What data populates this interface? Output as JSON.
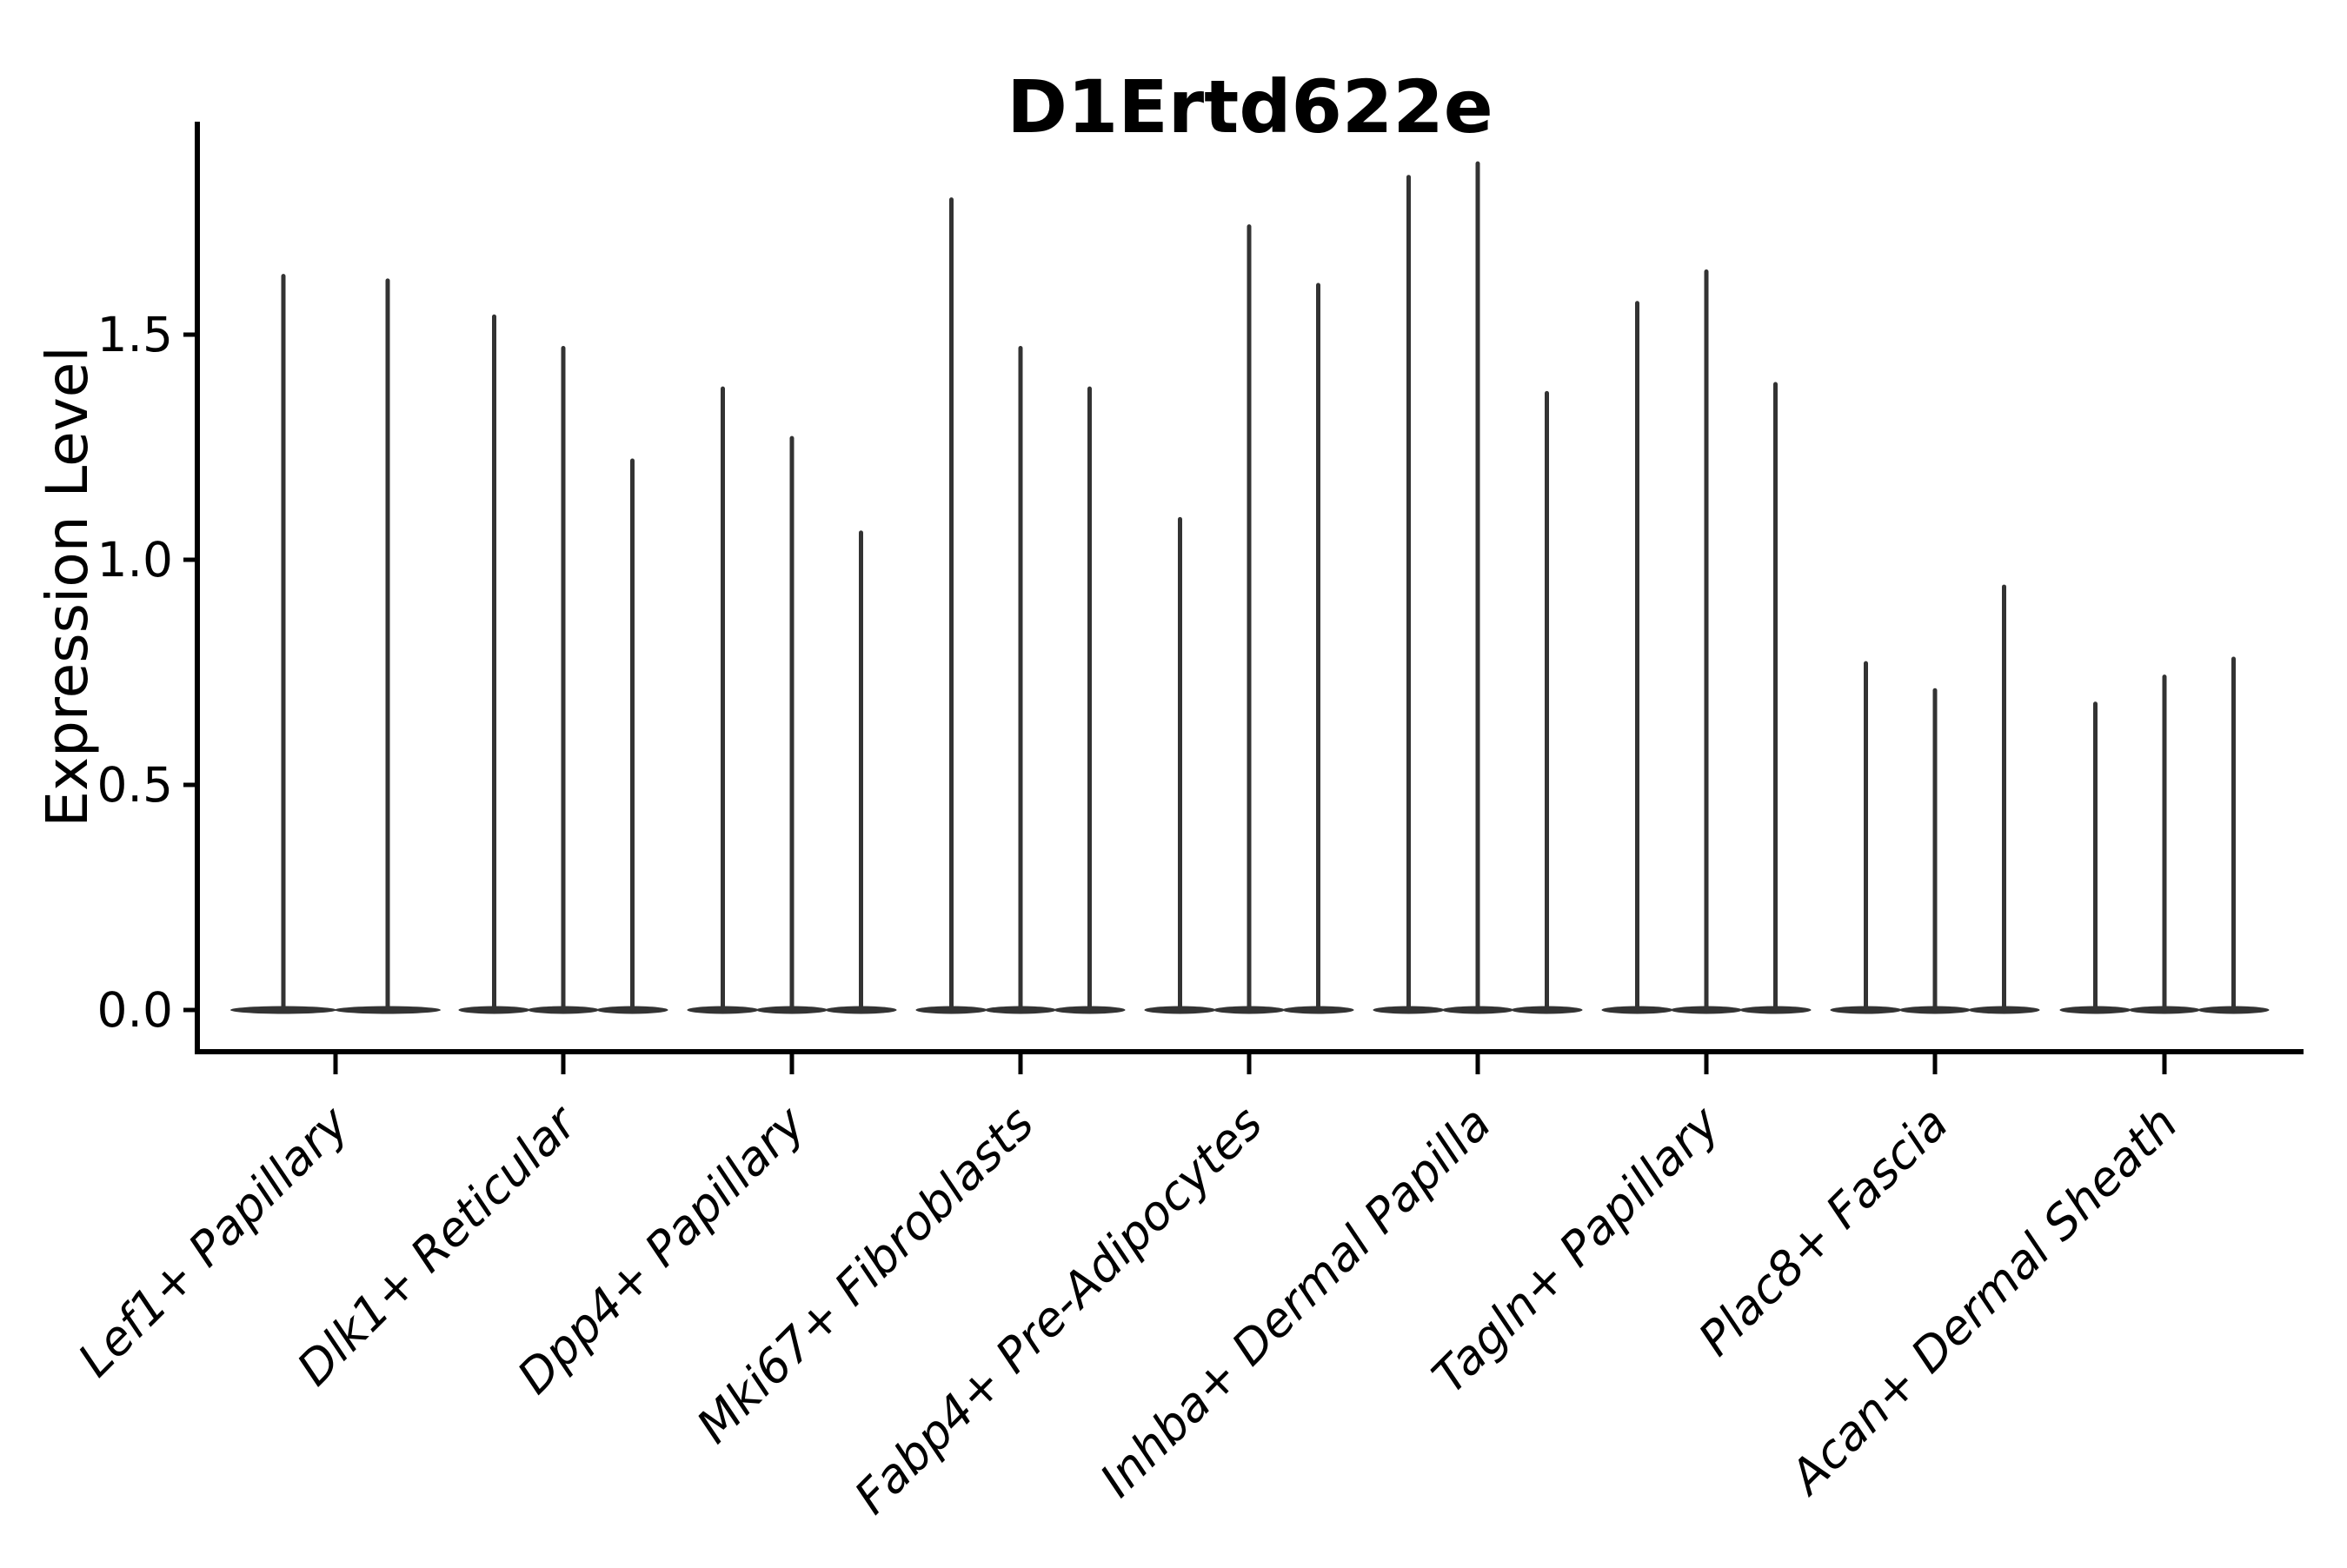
{
  "page": {
    "background": "#ffffff"
  },
  "colors": {
    "violin": "#333333",
    "axis": "#000000",
    "text": "#000000"
  },
  "chart_data": {
    "type": "violin",
    "title": "D1Ertd622e",
    "xlabel": "",
    "ylabel": "Expression Level",
    "ytick_labels": [
      "0.0",
      "0.5",
      "1.0",
      "1.5"
    ],
    "ytick_values": [
      0.0,
      0.5,
      1.0,
      1.5
    ],
    "ylim": [
      -0.09,
      1.97
    ],
    "grid": false,
    "legend": false,
    "x_tick_rotation_deg": 45,
    "categories": [
      "Lef1+ Papillary",
      "Dlk1+ Reticular",
      "Dpp4+ Papillary",
      "Mki67+ Fibroblasts",
      "Fabp4+ Pre-Adipocytes",
      "Inhba+ Dermal Papilla",
      "Tagln+ Papillary",
      "Plac8+ Fascia",
      "Acan+ Dermal Sheath"
    ],
    "series": [
      {
        "category": "Lef1+ Papillary",
        "n_violins": 2,
        "violin_peaks": [
          1.63,
          1.62
        ],
        "body_value": 0.0
      },
      {
        "category": "Dlk1+ Reticular",
        "n_violins": 3,
        "violin_peaks": [
          1.54,
          1.47,
          1.22
        ],
        "body_value": 0.0
      },
      {
        "category": "Dpp4+ Papillary",
        "n_violins": 3,
        "violin_peaks": [
          1.38,
          1.27,
          1.06
        ],
        "body_value": 0.0
      },
      {
        "category": "Mki67+ Fibroblasts",
        "n_violins": 3,
        "violin_peaks": [
          1.8,
          1.47,
          1.38
        ],
        "body_value": 0.0
      },
      {
        "category": "Fabp4+ Pre-Adipocytes",
        "n_violins": 3,
        "violin_peaks": [
          1.09,
          1.74,
          1.61
        ],
        "body_value": 0.0
      },
      {
        "category": "Inhba+ Dermal Papilla",
        "n_violins": 3,
        "violin_peaks": [
          1.85,
          1.88,
          1.37
        ],
        "body_value": 0.0
      },
      {
        "category": "Tagln+ Papillary",
        "n_violins": 3,
        "violin_peaks": [
          1.57,
          1.64,
          1.39
        ],
        "body_value": 0.0
      },
      {
        "category": "Plac8+ Fascia",
        "n_violins": 3,
        "violin_peaks": [
          0.77,
          0.71,
          0.94
        ],
        "body_value": 0.0
      },
      {
        "category": "Acan+ Dermal Sheath",
        "n_violins": 3,
        "violin_peaks": [
          0.68,
          0.74,
          0.78
        ],
        "body_value": 0.0
      }
    ],
    "annotation": "Each violin's density mass sits at expression 0 (wide flat base) with a thin spike rising to the listed maximum expression value."
  }
}
